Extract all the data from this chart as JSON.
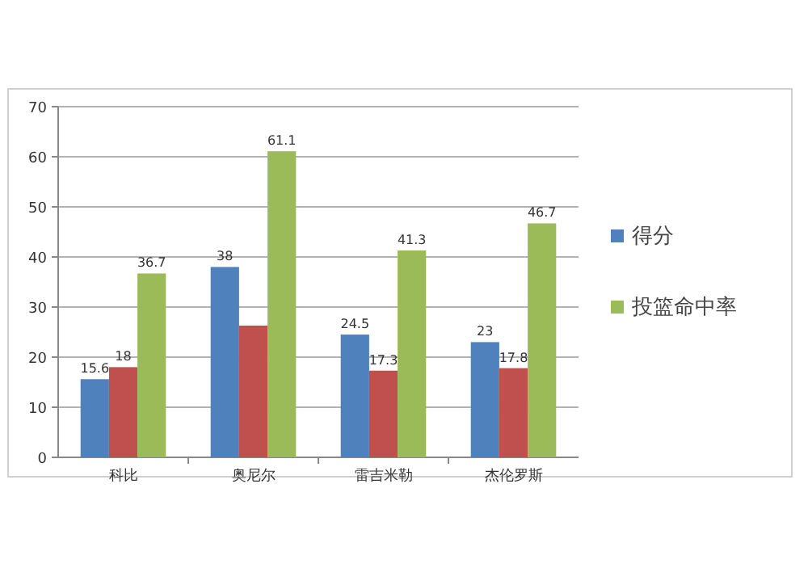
{
  "chart_data": {
    "type": "bar",
    "categories": [
      "科比",
      "奥尼尔",
      "雷吉米勒",
      "杰伦罗斯"
    ],
    "series": [
      {
        "name": "得分",
        "color": "#4f81bd",
        "values": [
          15.6,
          38,
          24.5,
          23
        ],
        "value_labels": [
          "15.6",
          "38",
          "24.5",
          "23"
        ]
      },
      {
        "color": "#c0504d",
        "values": [
          18,
          26.3,
          17.3,
          17.8
        ],
        "value_labels": [
          "18",
          null,
          "17.3",
          "17.8"
        ]
      },
      {
        "name": "投篮命中率",
        "color": "#9bbb59",
        "values": [
          36.7,
          61.1,
          41.3,
          46.7
        ],
        "value_labels": [
          "36.7",
          "61.1",
          "41.3",
          "46.7"
        ]
      }
    ],
    "ylim": [
      0,
      70
    ],
    "yticks": [
      0,
      10,
      20,
      30,
      40,
      50,
      60,
      70
    ],
    "grid": "y",
    "legend": "right"
  }
}
